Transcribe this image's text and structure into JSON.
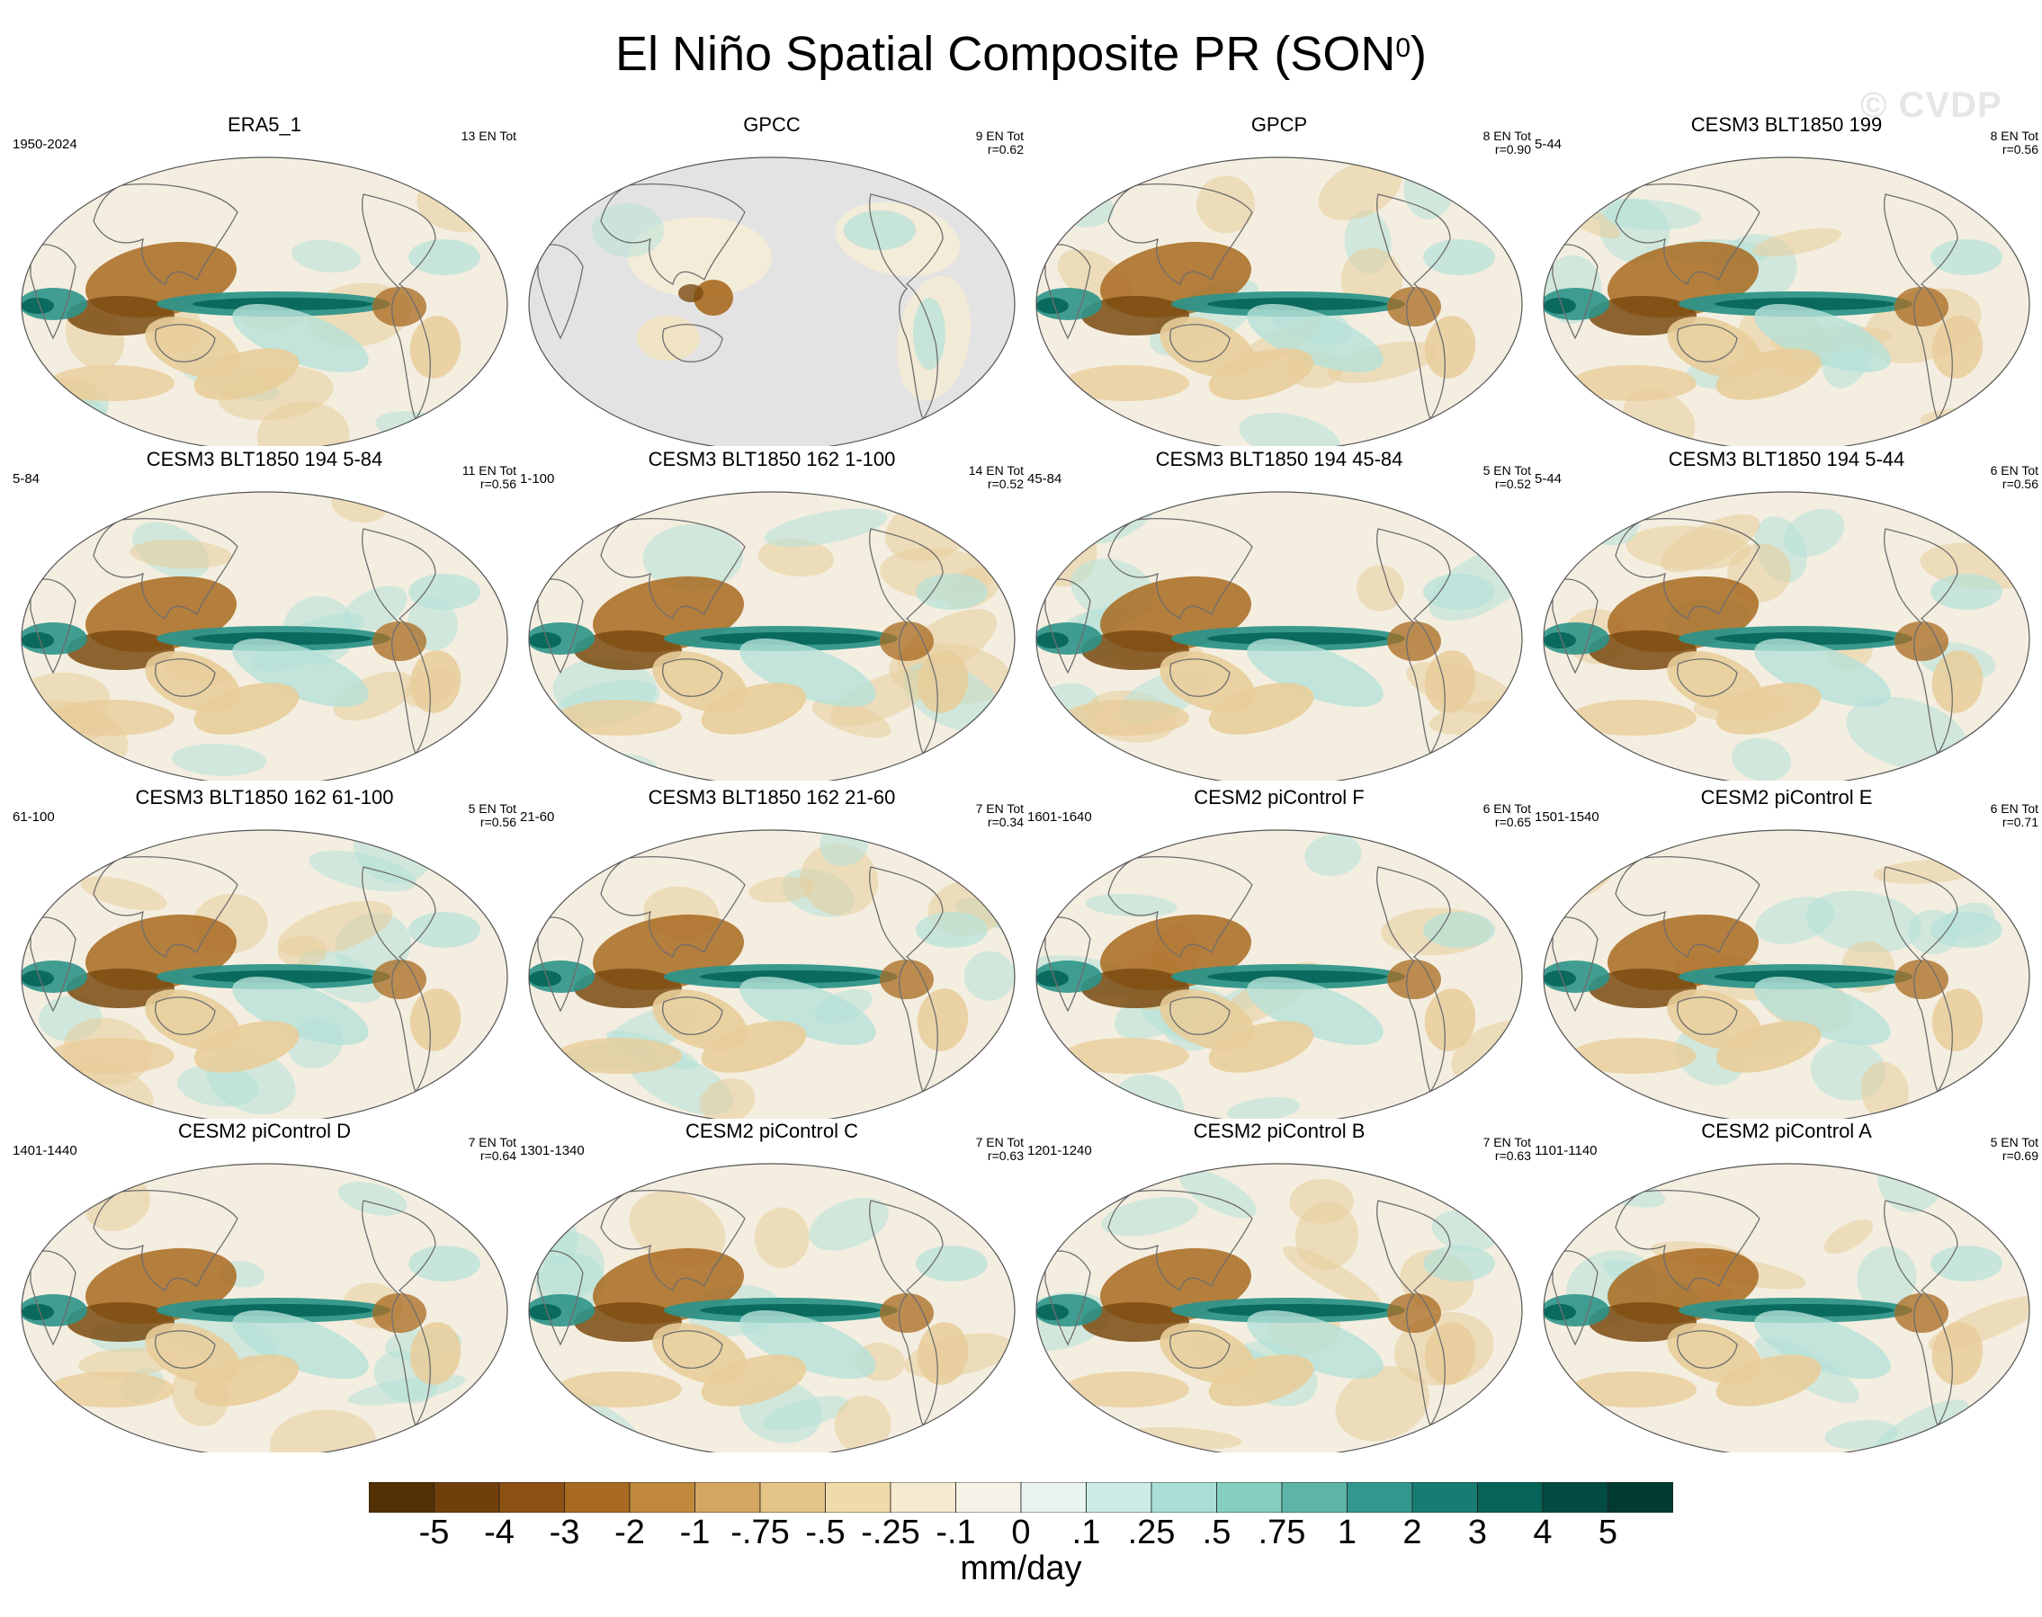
{
  "title": {
    "main": "El Niño Spatial Composite PR (SON",
    "superscript": "0",
    "close": ")"
  },
  "watermark": "© CVDP",
  "panels": [
    {
      "title": "ERA5_1",
      "period": "1950-2024",
      "events": "13 EN Tot",
      "corr": "",
      "masked": false
    },
    {
      "title": "GPCC",
      "period": "",
      "events": "9 EN Tot",
      "corr": "r=0.62",
      "masked": true
    },
    {
      "title": "GPCP",
      "period": "",
      "events": "8 EN Tot",
      "corr": "r=0.90",
      "masked": false
    },
    {
      "title": "CESM3 BLT1850 199",
      "period": "5-44",
      "events": "8 EN Tot",
      "corr": "r=0.56",
      "masked": false
    },
    {
      "title": "CESM3 BLT1850 194 5-84",
      "period": "5-84",
      "events": "11 EN Tot",
      "corr": "r=0.56",
      "masked": false
    },
    {
      "title": "CESM3 BLT1850 162 1-100",
      "period": "1-100",
      "events": "14 EN Tot",
      "corr": "r=0.52",
      "masked": false
    },
    {
      "title": "CESM3 BLT1850 194 45-84",
      "period": "45-84",
      "events": "5 EN Tot",
      "corr": "r=0.52",
      "masked": false
    },
    {
      "title": "CESM3 BLT1850 194 5-44",
      "period": "5-44",
      "events": "6 EN Tot",
      "corr": "r=0.56",
      "masked": false
    },
    {
      "title": "CESM3 BLT1850 162 61-100",
      "period": "61-100",
      "events": "5 EN Tot",
      "corr": "r=0.56",
      "masked": false
    },
    {
      "title": "CESM3 BLT1850 162 21-60",
      "period": "21-60",
      "events": "7 EN Tot",
      "corr": "r=0.34",
      "masked": false
    },
    {
      "title": "CESM2 piControl F",
      "period": "1601-1640",
      "events": "6 EN Tot",
      "corr": "r=0.65",
      "masked": false
    },
    {
      "title": "CESM2 piControl E",
      "period": "1501-1540",
      "events": "6 EN Tot",
      "corr": "r=0.71",
      "masked": false
    },
    {
      "title": "CESM2 piControl D",
      "period": "1401-1440",
      "events": "7 EN Tot",
      "corr": "r=0.64",
      "masked": false
    },
    {
      "title": "CESM2 piControl C",
      "period": "1301-1340",
      "events": "7 EN Tot",
      "corr": "r=0.63",
      "masked": false
    },
    {
      "title": "CESM2 piControl B",
      "period": "1201-1240",
      "events": "7 EN Tot",
      "corr": "r=0.63",
      "masked": false
    },
    {
      "title": "CESM2 piControl A",
      "period": "1101-1140",
      "events": "5 EN Tot",
      "corr": "r=0.69",
      "masked": false
    }
  ],
  "colorbar": {
    "colors": [
      "#543005",
      "#6f3f0c",
      "#8c5114",
      "#a86a20",
      "#c0893c",
      "#d3a661",
      "#e4c487",
      "#efdaaa",
      "#f6ead0",
      "#f6f2e8",
      "#e9f4f1",
      "#cdece6",
      "#a9dfd5",
      "#84cfc0",
      "#5db5a8",
      "#33978d",
      "#187c73",
      "#066358",
      "#024b40",
      "#013b30"
    ],
    "labels": [
      "-5",
      "-4",
      "-3",
      "-2",
      "-1",
      "-.75",
      "-.5",
      "-.25",
      "-.1",
      "0",
      ".1",
      ".25",
      ".5",
      ".75",
      "1",
      "2",
      "3",
      "4",
      "5"
    ],
    "units": "mm/day"
  }
}
